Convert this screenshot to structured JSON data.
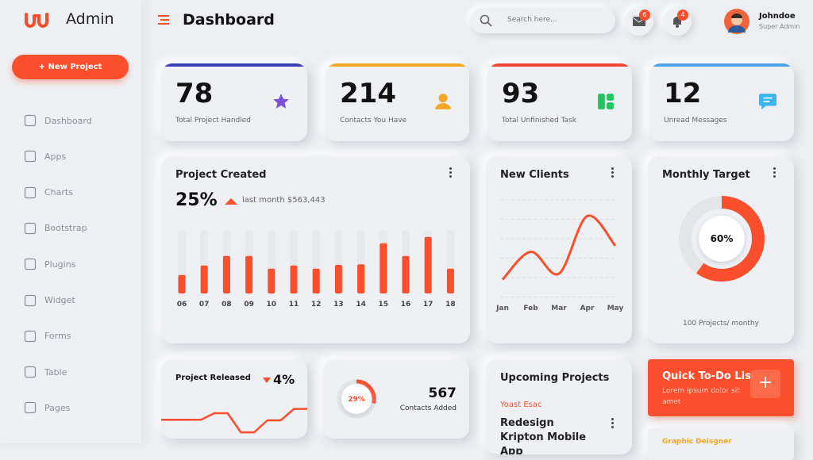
{
  "sidebar": {
    "brand": "Admin",
    "new_project": "+ New Project",
    "menu": [
      "Dashboard",
      "Apps",
      "Charts",
      "Bootstrap",
      "Plugins",
      "Widget",
      "Forms",
      "Table",
      "Pages"
    ]
  },
  "header": {
    "title": "Dashboard",
    "search_placeholder": "Search here...",
    "mail_badge": "6",
    "bell_badge": "4",
    "user_name": "Johndoe",
    "user_role": "Super Admin"
  },
  "stats": [
    {
      "value": "78",
      "label": "Total Project Handled",
      "color": "#3a3fb8"
    },
    {
      "value": "214",
      "label": "Contacts You Have",
      "color": "#f5a623"
    },
    {
      "value": "93",
      "label": "Total Unfinished Task",
      "color": "#f44336"
    },
    {
      "value": "12",
      "label": "Unread Messages",
      "color": "#4ea3e8"
    }
  ],
  "project_created": {
    "title": "Project Created",
    "percent": "25%",
    "note": "last month $563,443",
    "chart_data": {
      "type": "bar",
      "categories": [
        "06",
        "07",
        "08",
        "09",
        "10",
        "11",
        "12",
        "13",
        "14",
        "15",
        "16",
        "17",
        "18"
      ],
      "values": [
        29,
        44,
        59,
        59,
        39,
        44,
        39,
        45,
        46,
        79,
        59,
        89,
        39
      ],
      "ylim": [
        0,
        100
      ],
      "color": "#fb4e2c"
    }
  },
  "new_clients": {
    "title": "New Clients",
    "chart_data": {
      "type": "line",
      "categories": [
        "Jan",
        "Feb",
        "Mar",
        "Apr",
        "May"
      ],
      "values": [
        18,
        46,
        24,
        82,
        52
      ],
      "ylim": [
        0,
        100
      ],
      "color": "#fb4e2c"
    }
  },
  "monthly_target": {
    "title": "Monthly Target",
    "chart_data": {
      "type": "pie",
      "values": [
        60
      ],
      "value_labels": [
        "60%"
      ],
      "color": "#fb4e2c"
    },
    "footer": "100 Projects/ monthy"
  },
  "project_released": {
    "title": "Project Released",
    "percent": "4%",
    "chart_data": {
      "type": "line",
      "values": [
        52,
        52,
        52,
        52,
        75,
        75,
        8,
        8,
        50,
        50,
        90,
        90
      ],
      "ylim": [
        0,
        100
      ],
      "color": "#fb4e2c"
    }
  },
  "contacts_added": {
    "chart_data": {
      "type": "pie",
      "values": [
        29
      ],
      "value_labels": [
        "29%"
      ],
      "color": "#fb4e2c"
    },
    "count": "567",
    "label": "Contacts Added"
  },
  "upcoming": {
    "title": "Upcoming Projects",
    "client": "Yoast Esac",
    "project": "Redesign Kripton Mobile App"
  },
  "todo": {
    "title": "Quick To-Do List",
    "text": "Lorem ipsum dolor sit amet",
    "button": "+",
    "next_item": "Graphic Deisgner"
  }
}
